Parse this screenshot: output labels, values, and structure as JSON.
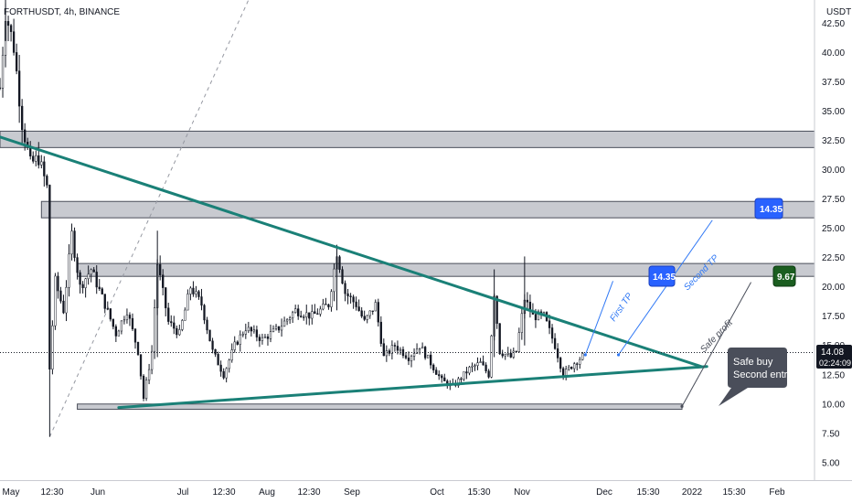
{
  "header": {
    "symbol": "FORTHUSDT",
    "timeframe": "4h",
    "exchange": "BINANCE",
    "title_text": "FORTHUSDT, 4h, BINANCE"
  },
  "price_axis": {
    "currency_label": "USDT",
    "ticks": [
      "42.50",
      "40.00",
      "37.50",
      "35.00",
      "32.50",
      "30.00",
      "27.50",
      "25.00",
      "22.50",
      "20.00",
      "17.50",
      "15.00",
      "12.50",
      "10.00",
      "7.50",
      "5.00"
    ],
    "current_price": "14.08",
    "countdown": "02:24:09"
  },
  "time_axis": {
    "ticks": [
      "May",
      "12:30",
      "Jun",
      "Jul",
      "12:30",
      "Aug",
      "12:30",
      "Sep",
      "Oct",
      "15:30",
      "Nov",
      "Dec",
      "15:30",
      "2022",
      "15:30",
      "Feb"
    ]
  },
  "annotations": {
    "first_tp_label": "First TP",
    "second_tp_label": "Second TP",
    "safe_profit_label": "Safe profit",
    "badge_first": "14.35",
    "badge_second": "14.35",
    "badge_safe": "9.67",
    "callout_line1": "Safe buy",
    "callout_line2": "Second entry"
  },
  "colors": {
    "trendline": "#1a8077",
    "zone_fill": "#c2c4cb",
    "zone_stroke": "#4a4e5a",
    "candle": "#131722",
    "tp_line": "#3179f5",
    "badge_blue": "#2962ff",
    "badge_green": "#1b5e20",
    "callout_bg": "#4a4e5a",
    "price_tag": "#131722",
    "dashed_guide": "#9598a1"
  },
  "chart_data": {
    "type": "candlestick",
    "symbol": "FORTHUSDT",
    "interval": "4h",
    "exchange": "BINANCE",
    "ylim": [
      3.5,
      44.5
    ],
    "x_range": [
      "2021-05-01",
      "2022-02-20"
    ],
    "last_price": 14.08,
    "price_series": {
      "name": "",
      "points": [
        [
          "2021-05-01",
          37.0
        ],
        [
          "2021-05-03",
          43.5
        ],
        [
          "2021-05-06",
          40.5
        ],
        [
          "2021-05-09",
          34.0
        ],
        [
          "2021-05-12",
          30.5
        ],
        [
          "2021-05-15",
          31.0
        ],
        [
          "2021-05-18",
          28.5
        ],
        [
          "2021-05-19",
          13.0
        ],
        [
          "2021-05-21",
          20.5
        ],
        [
          "2021-05-24",
          18.0
        ],
        [
          "2021-05-27",
          24.5
        ],
        [
          "2021-05-30",
          20.0
        ],
        [
          "2021-06-03",
          21.5
        ],
        [
          "2021-06-08",
          18.5
        ],
        [
          "2021-06-12",
          16.0
        ],
        [
          "2021-06-16",
          18.0
        ],
        [
          "2021-06-20",
          14.5
        ],
        [
          "2021-06-22",
          10.5
        ],
        [
          "2021-06-25",
          14.5
        ],
        [
          "2021-06-27",
          22.0
        ],
        [
          "2021-07-01",
          17.0
        ],
        [
          "2021-07-05",
          16.0
        ],
        [
          "2021-07-09",
          20.0
        ],
        [
          "2021-07-13",
          18.5
        ],
        [
          "2021-07-17",
          14.5
        ],
        [
          "2021-07-21",
          12.5
        ],
        [
          "2021-07-25",
          15.0
        ],
        [
          "2021-07-29",
          16.5
        ],
        [
          "2021-08-04",
          15.5
        ],
        [
          "2021-08-10",
          16.5
        ],
        [
          "2021-08-16",
          18.0
        ],
        [
          "2021-08-22",
          17.5
        ],
        [
          "2021-08-28",
          18.5
        ],
        [
          "2021-08-31",
          23.0
        ],
        [
          "2021-09-03",
          19.5
        ],
        [
          "2021-09-07",
          18.5
        ],
        [
          "2021-09-10",
          17.0
        ],
        [
          "2021-09-14",
          18.5
        ],
        [
          "2021-09-17",
          14.0
        ],
        [
          "2021-09-21",
          15.0
        ],
        [
          "2021-09-26",
          14.0
        ],
        [
          "2021-09-30",
          15.0
        ],
        [
          "2021-10-04",
          13.5
        ],
        [
          "2021-10-08",
          12.0
        ],
        [
          "2021-10-12",
          11.5
        ],
        [
          "2021-10-18",
          13.0
        ],
        [
          "2021-10-22",
          13.5
        ],
        [
          "2021-10-25",
          12.5
        ],
        [
          "2021-10-27",
          19.5
        ],
        [
          "2021-10-29",
          14.5
        ],
        [
          "2021-11-02",
          14.0
        ],
        [
          "2021-11-04",
          14.5
        ],
        [
          "2021-11-07",
          19.0
        ],
        [
          "2021-11-10",
          17.5
        ],
        [
          "2021-11-14",
          17.5
        ],
        [
          "2021-11-18",
          15.0
        ],
        [
          "2021-11-21",
          12.5
        ],
        [
          "2021-11-25",
          13.5
        ],
        [
          "2021-11-28",
          14.08
        ]
      ]
    },
    "trendlines": [
      {
        "name": "descending resistance",
        "from": [
          "2021-05-01",
          32.8
        ],
        "to": [
          "2022-01-10",
          13.2
        ]
      },
      {
        "name": "ascending support",
        "from": [
          "2021-06-13",
          9.7
        ],
        "to": [
          "2022-01-12",
          13.2
        ]
      }
    ],
    "zones": [
      {
        "from_date": "2021-05-01",
        "to_date": "2022-02-20",
        "low": 31.9,
        "high": 33.3
      },
      {
        "from_date": "2021-05-16",
        "to_date": "2022-02-20",
        "low": 25.9,
        "high": 27.3
      },
      {
        "from_date": "2021-05-29",
        "to_date": "2022-02-20",
        "low": 20.9,
        "high": 22.0
      },
      {
        "from_date": "2021-05-29",
        "to_date": "2022-01-03",
        "low": 9.55,
        "high": 10.0
      }
    ],
    "targets": [
      {
        "label": "First TP",
        "badge": "14.35",
        "from": [
          "2021-11-29",
          14.2
        ],
        "to": [
          "2021-12-09",
          20.5
        ]
      },
      {
        "label": "Second TP",
        "badge": "14.35",
        "from": [
          "2021-12-11",
          14.2
        ],
        "to": [
          "2022-01-14",
          25.7
        ]
      },
      {
        "label": "Safe profit",
        "badge": "9.67",
        "from": [
          "2022-01-03",
          9.8
        ],
        "to": [
          "2022-01-28",
          20.4
        ]
      }
    ],
    "callout": {
      "text": [
        "Safe buy",
        "Second entry"
      ],
      "anchor": [
        "2022-01-12",
        9.8
      ]
    },
    "grid": false,
    "legend": "none"
  }
}
